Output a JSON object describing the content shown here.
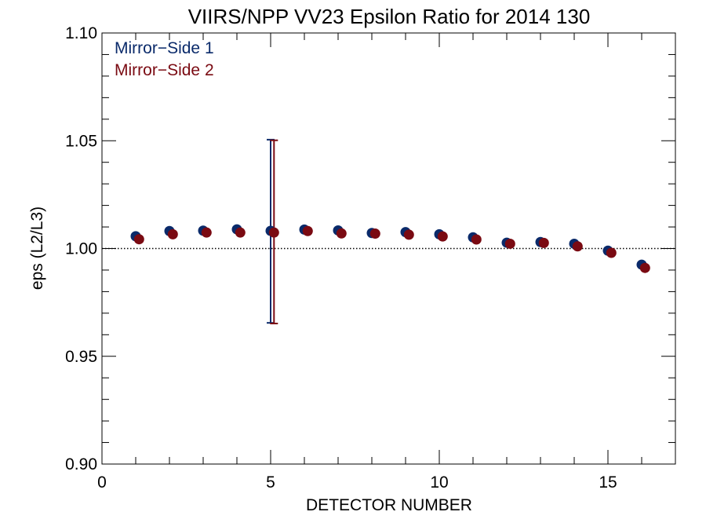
{
  "chart_data": {
    "type": "scatter",
    "title": "VIIRS/NPP VV23 Epsilon Ratio for 2014 130",
    "xlabel": "DETECTOR NUMBER",
    "ylabel": "eps (L2/L3)",
    "xlim": [
      0,
      17
    ],
    "ylim": [
      0.9,
      1.1
    ],
    "x_ticks": [
      0,
      5,
      10,
      15
    ],
    "x_tick_labels": [
      "0",
      "5",
      "10",
      "15"
    ],
    "y_ticks": [
      0.9,
      0.95,
      1.0,
      1.05,
      1.1
    ],
    "y_tick_labels": [
      "0.90",
      "0.95",
      "1.00",
      "1.05",
      "1.10"
    ],
    "reference_line": 1.0,
    "legend_position": "top-left",
    "series": [
      {
        "name": "Mirror−Side 1",
        "color": "#0a2a6a",
        "x": [
          1,
          2,
          3,
          4,
          5,
          6,
          7,
          8,
          9,
          10,
          11,
          12,
          13,
          14,
          15,
          16
        ],
        "y": [
          1.0057,
          1.0081,
          1.0083,
          1.0089,
          1.0082,
          1.0088,
          1.0084,
          1.0072,
          1.0076,
          1.0066,
          1.0052,
          1.0027,
          1.003,
          1.0022,
          0.999,
          0.9925
        ]
      },
      {
        "name": "Mirror−Side 2",
        "color": "#7a0a12",
        "x": [
          1.1,
          2.1,
          3.1,
          4.1,
          5.1,
          6.1,
          7.1,
          8.1,
          9.1,
          10.1,
          11.1,
          12.1,
          13.1,
          14.1,
          15.1,
          16.1
        ],
        "y": [
          1.0043,
          1.0066,
          1.0074,
          1.0074,
          1.0074,
          1.0081,
          1.007,
          1.0069,
          1.0064,
          1.0056,
          1.0042,
          1.0022,
          1.0026,
          1.001,
          0.998,
          0.991
        ]
      }
    ],
    "error_bars": [
      {
        "series": "Mirror−Side 1",
        "x": 5,
        "low": 0.9655,
        "high": 1.0505
      },
      {
        "series": "Mirror−Side 2",
        "x": 5.1,
        "low": 0.9652,
        "high": 1.0502
      }
    ]
  }
}
